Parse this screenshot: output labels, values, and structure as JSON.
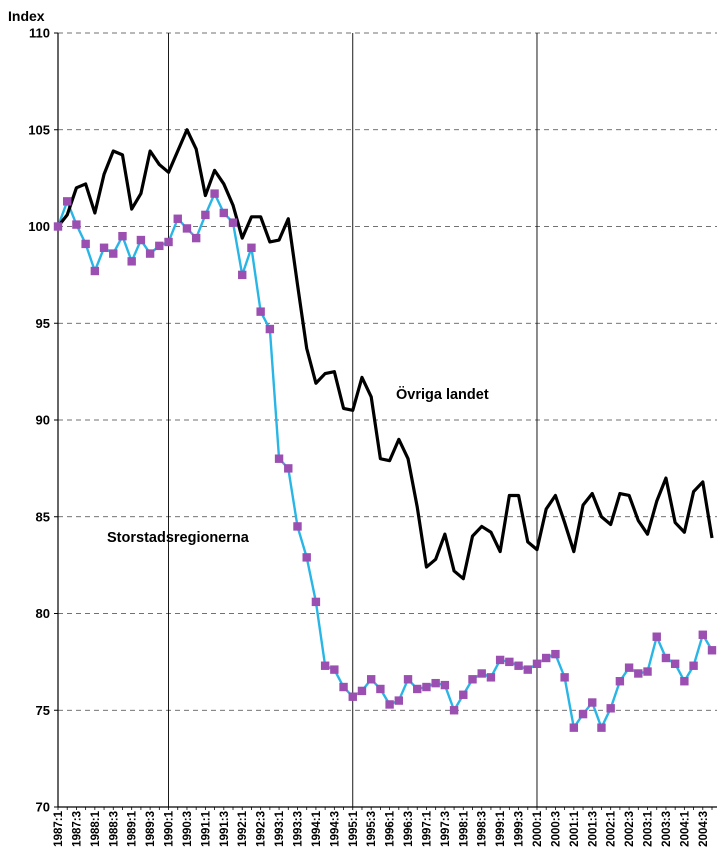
{
  "chart_data": {
    "type": "line",
    "ylabel": "Index",
    "ylim": [
      70,
      110
    ],
    "yticks": [
      70,
      75,
      80,
      85,
      90,
      95,
      100,
      105,
      110
    ],
    "grid": "horizontal dashed",
    "annotations": [
      "Övriga landet",
      "Storstadsregionerna"
    ],
    "x_tick_labels": [
      "1987:1",
      "1987:3",
      "1988:1",
      "1988:3",
      "1989:1",
      "1989:3",
      "1990:1",
      "1990:3",
      "1991:1",
      "1991:3",
      "1992:1",
      "1992:3",
      "1993:1",
      "1993:3",
      "1994:1",
      "1994:3",
      "1995:1",
      "1995:3",
      "1996:1",
      "1996:3",
      "1997:1",
      "1997:3",
      "1998:1",
      "1998:3",
      "1999:1",
      "1999:3",
      "2000:1",
      "2000:3",
      "2001:1",
      "2001:3",
      "2002:1",
      "2002:3",
      "2003:1",
      "2003:3",
      "2004:1",
      "2004:3"
    ],
    "vertical_lines_at": [
      "1990:1",
      "1995:1",
      "2000:1"
    ],
    "x_start": "1987:1",
    "series": [
      {
        "color": "#000000",
        "values": [
          100.0,
          100.6,
          102.0,
          102.2,
          100.7,
          102.7,
          103.9,
          103.7,
          100.9,
          101.7,
          103.9,
          103.2,
          102.8,
          103.9,
          105.0,
          104.0,
          101.6,
          102.9,
          102.2,
          101.1,
          99.4,
          100.5,
          100.5,
          99.2,
          99.3,
          100.4,
          97.0,
          93.7,
          91.9,
          92.4,
          92.5,
          90.6,
          90.5,
          92.2,
          91.2,
          88.0,
          87.9,
          89.0,
          88.0,
          85.5,
          82.4,
          82.8,
          84.1,
          82.2,
          81.8,
          84.0,
          84.5,
          84.2,
          83.2,
          86.1,
          86.1,
          83.7,
          83.3,
          85.4,
          86.1,
          84.7,
          83.2,
          85.6,
          86.2,
          85.0,
          84.6,
          86.2,
          86.1,
          84.8,
          84.1,
          85.8,
          87.0,
          84.7,
          84.2,
          86.3,
          86.8,
          83.9
        ]
      },
      {
        "color": "#29b6e6",
        "marker_color": "#9b4fb0",
        "values": [
          100.0,
          101.3,
          100.1,
          99.1,
          97.7,
          98.9,
          98.6,
          99.5,
          98.2,
          99.3,
          98.6,
          99.0,
          99.2,
          100.4,
          99.9,
          99.4,
          100.6,
          101.7,
          100.7,
          100.2,
          97.5,
          98.9,
          95.6,
          94.7,
          88.0,
          87.5,
          84.5,
          82.9,
          80.6,
          77.3,
          77.1,
          76.2,
          75.7,
          76.0,
          76.6,
          76.1,
          75.3,
          75.5,
          76.6,
          76.1,
          76.2,
          76.4,
          76.3,
          75.0,
          75.8,
          76.6,
          76.9,
          76.7,
          77.6,
          77.5,
          77.3,
          77.1,
          77.4,
          77.7,
          77.9,
          76.7,
          74.1,
          74.8,
          75.4,
          74.1,
          75.1,
          76.5,
          77.2,
          76.9,
          77.0,
          78.8,
          77.7,
          77.4,
          76.5,
          77.3,
          78.9,
          78.1
        ]
      }
    ]
  }
}
